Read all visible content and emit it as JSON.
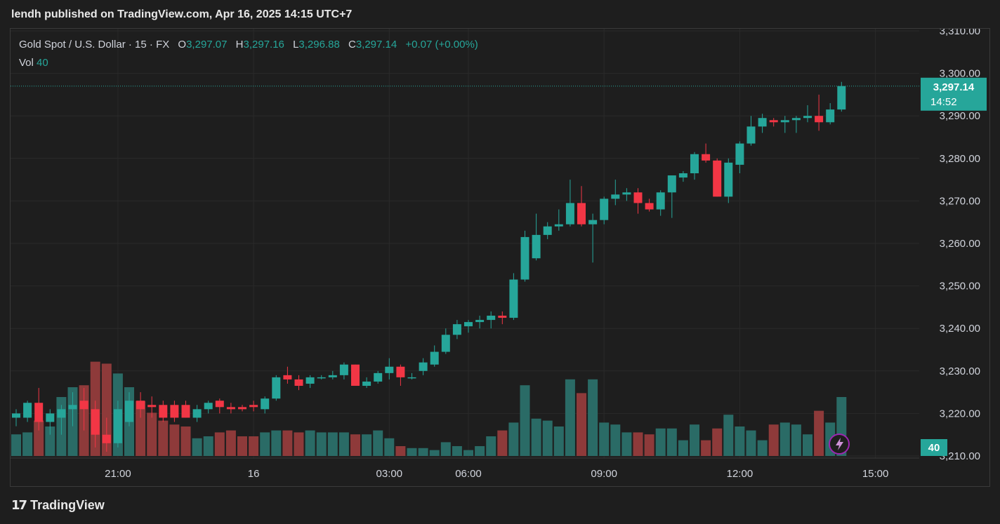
{
  "header": {
    "text": "lendh published on TradingView.com, Apr 16, 2025 14:15 UTC+7"
  },
  "legend": {
    "symbol": "Gold Spot / U.S. Dollar · 15 · FX",
    "o_label": "O",
    "o_value": "3,297.07",
    "h_label": "H",
    "h_value": "3,297.16",
    "l_label": "L",
    "l_value": "3,296.88",
    "c_label": "C",
    "c_value": "3,297.14",
    "change": "+0.07 (+0.00%)",
    "vol_label": "Vol",
    "vol_value": "40"
  },
  "footer": {
    "logo": "TradingView"
  },
  "colors": {
    "up": "#26a69a",
    "down": "#f23645",
    "vol_up": "#2a6b66",
    "vol_down": "#8e3a3a",
    "grid": "#2a2a2a",
    "bg": "#1e1e1e"
  },
  "chart_data": {
    "type": "candlestick",
    "ylim": [
      3210,
      3310
    ],
    "y_ticks": [
      "3,310.00",
      "3,300.00",
      "3,290.00",
      "3,280.00",
      "3,270.00",
      "3,260.00",
      "3,250.00",
      "3,240.00",
      "3,230.00",
      "3,220.00",
      "3,210.00"
    ],
    "y_tick_values": [
      3310,
      3300,
      3290,
      3280,
      3270,
      3260,
      3250,
      3240,
      3230,
      3220,
      3210
    ],
    "x_ticks": [
      {
        "label": "21:00",
        "index": 9
      },
      {
        "label": "16",
        "index": 21
      },
      {
        "label": "03:00",
        "index": 33
      },
      {
        "label": "06:00",
        "index": 40
      },
      {
        "label": "09:00",
        "index": 52
      },
      {
        "label": "12:00",
        "index": 64
      },
      {
        "label": "15:00",
        "index": 76
      }
    ],
    "last_price": "3,297.14",
    "countdown": "14:52",
    "last_volume": "40",
    "candles": [
      {
        "o": 3219,
        "h": 3221,
        "l": 3217,
        "c": 3220,
        "v": 11
      },
      {
        "o": 3219,
        "h": 3223,
        "l": 3218,
        "c": 3222.5,
        "v": 12
      },
      {
        "o": 3222.5,
        "h": 3226,
        "l": 3216,
        "c": 3218,
        "v": 18
      },
      {
        "o": 3218,
        "h": 3221,
        "l": 3215,
        "c": 3220,
        "v": 15
      },
      {
        "o": 3219,
        "h": 3222,
        "l": 3215,
        "c": 3221,
        "v": 30
      },
      {
        "o": 3221,
        "h": 3225,
        "l": 3217,
        "c": 3222,
        "v": 35
      },
      {
        "o": 3223,
        "h": 3226,
        "l": 3216,
        "c": 3221,
        "v": 36
      },
      {
        "o": 3221,
        "h": 3223,
        "l": 3212,
        "c": 3215,
        "v": 48
      },
      {
        "o": 3215,
        "h": 3219,
        "l": 3211,
        "c": 3213,
        "v": 47
      },
      {
        "o": 3213,
        "h": 3223,
        "l": 3212,
        "c": 3221,
        "v": 42
      },
      {
        "o": 3218,
        "h": 3225,
        "l": 3217,
        "c": 3223,
        "v": 35
      },
      {
        "o": 3223,
        "h": 3225,
        "l": 3219,
        "c": 3221,
        "v": 28
      },
      {
        "o": 3222,
        "h": 3224,
        "l": 3219,
        "c": 3221.5,
        "v": 22
      },
      {
        "o": 3222,
        "h": 3223,
        "l": 3218,
        "c": 3219,
        "v": 18
      },
      {
        "o": 3222,
        "h": 3223,
        "l": 3218,
        "c": 3219,
        "v": 16
      },
      {
        "o": 3222,
        "h": 3223,
        "l": 3219,
        "c": 3219,
        "v": 15
      },
      {
        "o": 3219,
        "h": 3222,
        "l": 3218,
        "c": 3221,
        "v": 9
      },
      {
        "o": 3221,
        "h": 3223,
        "l": 3220,
        "c": 3222.5,
        "v": 10
      },
      {
        "o": 3223,
        "h": 3223.5,
        "l": 3220,
        "c": 3221.5,
        "v": 12
      },
      {
        "o": 3221.5,
        "h": 3222.5,
        "l": 3220,
        "c": 3221,
        "v": 13
      },
      {
        "o": 3221.5,
        "h": 3222,
        "l": 3220.5,
        "c": 3221,
        "v": 10
      },
      {
        "o": 3222,
        "h": 3223,
        "l": 3220.5,
        "c": 3221.5,
        "v": 10
      },
      {
        "o": 3221,
        "h": 3224,
        "l": 3220,
        "c": 3223.5,
        "v": 12
      },
      {
        "o": 3223.5,
        "h": 3229,
        "l": 3223,
        "c": 3228.5,
        "v": 13
      },
      {
        "o": 3229,
        "h": 3231,
        "l": 3227,
        "c": 3228,
        "v": 13
      },
      {
        "o": 3228,
        "h": 3229,
        "l": 3225.5,
        "c": 3226.5,
        "v": 12
      },
      {
        "o": 3227,
        "h": 3229,
        "l": 3226,
        "c": 3228.5,
        "v": 13
      },
      {
        "o": 3228.5,
        "h": 3229,
        "l": 3228,
        "c": 3228.5,
        "v": 12
      },
      {
        "o": 3228.5,
        "h": 3230,
        "l": 3228,
        "c": 3229,
        "v": 12
      },
      {
        "o": 3229,
        "h": 3232,
        "l": 3228,
        "c": 3231.5,
        "v": 12
      },
      {
        "o": 3231.5,
        "h": 3231.5,
        "l": 3226.5,
        "c": 3226.5,
        "v": 11
      },
      {
        "o": 3226.5,
        "h": 3228.5,
        "l": 3226,
        "c": 3227.5,
        "v": 11
      },
      {
        "o": 3227.5,
        "h": 3230,
        "l": 3227,
        "c": 3229.5,
        "v": 13
      },
      {
        "o": 3229.5,
        "h": 3233,
        "l": 3228,
        "c": 3231,
        "v": 9
      },
      {
        "o": 3231,
        "h": 3231.5,
        "l": 3226.5,
        "c": 3228.5,
        "v": 5
      },
      {
        "o": 3228.5,
        "h": 3229.5,
        "l": 3228,
        "c": 3228.5,
        "v": 4
      },
      {
        "o": 3230,
        "h": 3233,
        "l": 3229,
        "c": 3232,
        "v": 4
      },
      {
        "o": 3231.5,
        "h": 3236,
        "l": 3231,
        "c": 3234.5,
        "v": 3
      },
      {
        "o": 3234.5,
        "h": 3240,
        "l": 3234,
        "c": 3238.5,
        "v": 7
      },
      {
        "o": 3238.5,
        "h": 3242,
        "l": 3237.5,
        "c": 3241,
        "v": 5
      },
      {
        "o": 3240.5,
        "h": 3242,
        "l": 3239,
        "c": 3241.5,
        "v": 3
      },
      {
        "o": 3241.5,
        "h": 3243,
        "l": 3240,
        "c": 3242,
        "v": 5
      },
      {
        "o": 3242,
        "h": 3244,
        "l": 3240,
        "c": 3243,
        "v": 10
      },
      {
        "o": 3243,
        "h": 3244,
        "l": 3241,
        "c": 3242.5,
        "v": 13
      },
      {
        "o": 3242.5,
        "h": 3253,
        "l": 3242,
        "c": 3251.5,
        "v": 17
      },
      {
        "o": 3251.5,
        "h": 3263,
        "l": 3251,
        "c": 3261.5,
        "v": 36
      },
      {
        "o": 3256.5,
        "h": 3267,
        "l": 3256,
        "c": 3262,
        "v": 19
      },
      {
        "o": 3262,
        "h": 3265,
        "l": 3261,
        "c": 3264,
        "v": 18
      },
      {
        "o": 3264,
        "h": 3268,
        "l": 3263,
        "c": 3264.5,
        "v": 15
      },
      {
        "o": 3264.5,
        "h": 3275,
        "l": 3264,
        "c": 3269.5,
        "v": 39
      },
      {
        "o": 3269.5,
        "h": 3273.5,
        "l": 3264,
        "c": 3264.5,
        "v": 32
      },
      {
        "o": 3264.5,
        "h": 3267,
        "l": 3255.5,
        "c": 3265.5,
        "v": 39
      },
      {
        "o": 3265.5,
        "h": 3271,
        "l": 3264.5,
        "c": 3270.5,
        "v": 17
      },
      {
        "o": 3270.5,
        "h": 3275,
        "l": 3269,
        "c": 3271.5,
        "v": 16
      },
      {
        "o": 3271.5,
        "h": 3273,
        "l": 3270,
        "c": 3272,
        "v": 12
      },
      {
        "o": 3272,
        "h": 3273,
        "l": 3267,
        "c": 3269.5,
        "v": 12
      },
      {
        "o": 3269.5,
        "h": 3270.5,
        "l": 3267.5,
        "c": 3268,
        "v": 11
      },
      {
        "o": 3268,
        "h": 3272.5,
        "l": 3266.5,
        "c": 3272,
        "v": 14
      },
      {
        "o": 3272,
        "h": 3276,
        "l": 3266,
        "c": 3276,
        "v": 14
      },
      {
        "o": 3275.5,
        "h": 3277,
        "l": 3274.5,
        "c": 3276.5,
        "v": 8
      },
      {
        "o": 3276.5,
        "h": 3281.5,
        "l": 3275,
        "c": 3281,
        "v": 16
      },
      {
        "o": 3281,
        "h": 3283.5,
        "l": 3279,
        "c": 3279.5,
        "v": 8
      },
      {
        "o": 3279.5,
        "h": 3280,
        "l": 3271,
        "c": 3271,
        "v": 14
      },
      {
        "o": 3271,
        "h": 3280,
        "l": 3269.5,
        "c": 3279,
        "v": 21
      },
      {
        "o": 3278.5,
        "h": 3284,
        "l": 3276.5,
        "c": 3283.5,
        "v": 15
      },
      {
        "o": 3283.5,
        "h": 3290,
        "l": 3283,
        "c": 3287.5,
        "v": 13
      },
      {
        "o": 3287.5,
        "h": 3290.5,
        "l": 3286,
        "c": 3289.5,
        "v": 8
      },
      {
        "o": 3289,
        "h": 3289.5,
        "l": 3287.5,
        "c": 3288.5,
        "v": 16
      },
      {
        "o": 3288.5,
        "h": 3290,
        "l": 3286,
        "c": 3289,
        "v": 17
      },
      {
        "o": 3289,
        "h": 3290,
        "l": 3286,
        "c": 3289.5,
        "v": 16
      },
      {
        "o": 3289.5,
        "h": 3292.5,
        "l": 3288.5,
        "c": 3290,
        "v": 11
      },
      {
        "o": 3290,
        "h": 3295,
        "l": 3286.5,
        "c": 3288.5,
        "v": 23
      },
      {
        "o": 3288.5,
        "h": 3293,
        "l": 3288,
        "c": 3291.5,
        "v": 17
      },
      {
        "o": 3291.5,
        "h": 3298,
        "l": 3291,
        "c": 3297,
        "v": 30
      }
    ]
  }
}
